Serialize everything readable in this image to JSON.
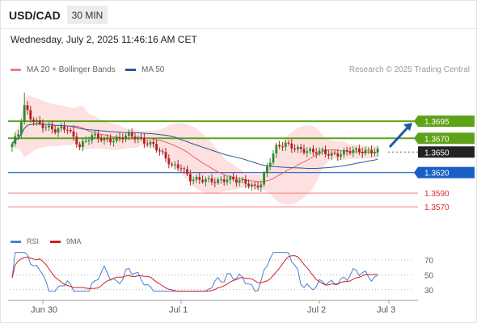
{
  "header": {
    "symbol": "USD/CAD",
    "timeframe": "30 MIN",
    "datetime": "Wednesday, July 2, 2025 11:46:16 AM CET"
  },
  "legend": [
    {
      "label": "MA 20 + Bollinger Bands",
      "color": "#f08080"
    },
    {
      "label": "MA 50",
      "color": "#2b5797"
    }
  ],
  "credit": "Research © 2025 Trading Central",
  "colors": {
    "up": "#2e8b2e",
    "down": "#b22222",
    "band": "#fddede",
    "ma20": "#e06666",
    "ma50": "#2b5797",
    "resistance": "#5ea21a",
    "support": "#1a5fc8",
    "support_weak": "#f08080",
    "rsi": "#4a7fd4",
    "rsi_ma": "#d42020",
    "price_tag": "#222222",
    "arrow": "#1d5aa8"
  },
  "chart_data": {
    "type": "candlestick",
    "price_range": [
      1.353,
      1.376
    ],
    "x_ticks": [
      "Jun 30",
      "Jul 1",
      "Jul 2",
      "Jul 3"
    ],
    "levels": [
      {
        "value": 1.3695,
        "label": "1.3695",
        "kind": "resistance"
      },
      {
        "value": 1.367,
        "label": "1.3670",
        "kind": "resistance"
      },
      {
        "value": 1.365,
        "label": "1.3650",
        "kind": "current"
      },
      {
        "value": 1.362,
        "label": "1.3620",
        "kind": "support"
      },
      {
        "value": 1.359,
        "label": "1.3590",
        "kind": "support_weak"
      },
      {
        "value": 1.357,
        "label": "1.3570",
        "kind": "support_weak"
      }
    ],
    "anchors": [
      [
        0,
        1.3662
      ],
      [
        2,
        1.3675
      ],
      [
        4,
        1.3715
      ],
      [
        6,
        1.37
      ],
      [
        10,
        1.369
      ],
      [
        14,
        1.368
      ],
      [
        18,
        1.3685
      ],
      [
        22,
        1.366
      ],
      [
        26,
        1.3672
      ],
      [
        30,
        1.3668
      ],
      [
        34,
        1.367
      ],
      [
        38,
        1.3673
      ],
      [
        42,
        1.3668
      ],
      [
        46,
        1.3662
      ],
      [
        49,
        1.3645
      ],
      [
        52,
        1.3628
      ],
      [
        55,
        1.363
      ],
      [
        58,
        1.3612
      ],
      [
        61,
        1.3608
      ],
      [
        64,
        1.3607
      ],
      [
        67,
        1.3609
      ],
      [
        70,
        1.3612
      ],
      [
        73,
        1.3607
      ],
      [
        76,
        1.3604
      ],
      [
        79,
        1.36
      ],
      [
        81,
        1.3606
      ],
      [
        83,
        1.3628
      ],
      [
        86,
        1.3655
      ],
      [
        89,
        1.3662
      ],
      [
        92,
        1.3658
      ],
      [
        95,
        1.3652
      ],
      [
        98,
        1.3648
      ],
      [
        101,
        1.3651
      ],
      [
        104,
        1.3648
      ],
      [
        107,
        1.3647
      ],
      [
        110,
        1.365
      ],
      [
        113,
        1.3652
      ],
      [
        116,
        1.3653
      ],
      [
        119,
        1.3651
      ]
    ],
    "rsi": {
      "legend": [
        "RSI",
        "9MA"
      ],
      "ticks": [
        70,
        50,
        30
      ],
      "range": [
        20,
        85
      ]
    },
    "projection": {
      "from": 1.3655,
      "to": 1.3695
    }
  }
}
